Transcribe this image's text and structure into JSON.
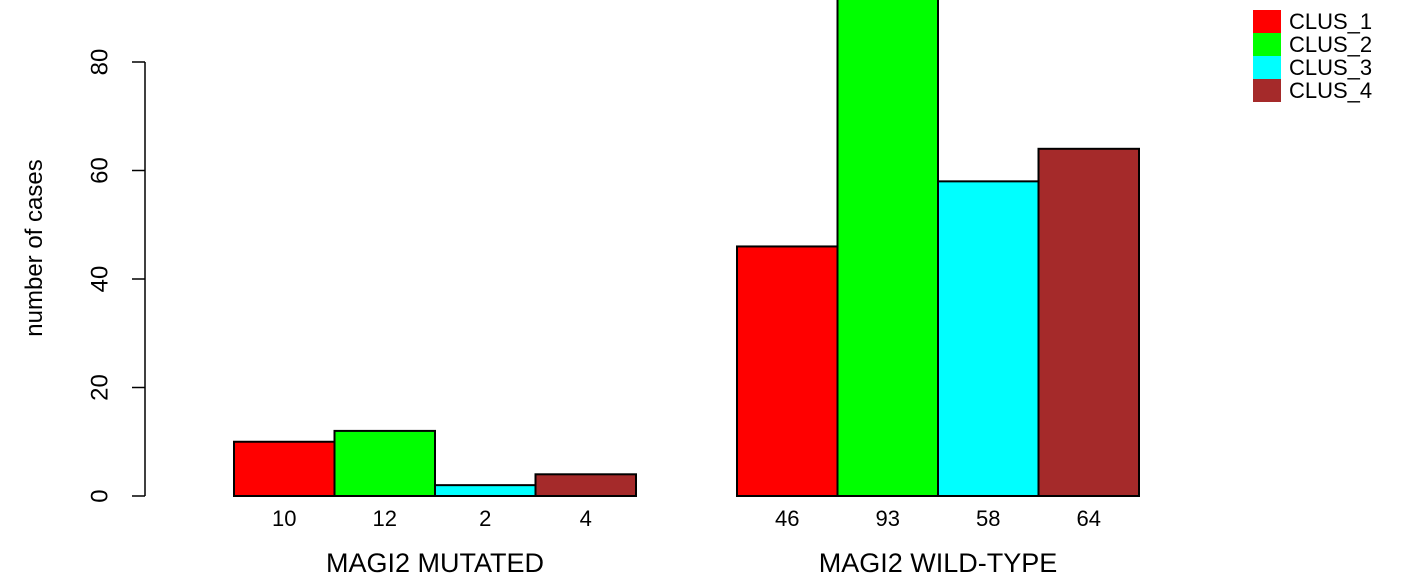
{
  "chart_data": {
    "type": "bar",
    "ylabel": "number of cases",
    "ylim": [
      0,
      93
    ],
    "yticks": [
      0,
      20,
      40,
      60,
      80
    ],
    "groups": [
      {
        "label": "MAGI2 MUTATED",
        "values": [
          10,
          12,
          2,
          4
        ]
      },
      {
        "label": "MAGI2 WILD-TYPE",
        "values": [
          46,
          93,
          58,
          64
        ]
      }
    ],
    "series": [
      {
        "name": "CLUS_1",
        "color": "#ff0000"
      },
      {
        "name": "CLUS_2",
        "color": "#00ff00"
      },
      {
        "name": "CLUS_3",
        "color": "#00ffff"
      },
      {
        "name": "CLUS_4",
        "color": "#a52a2a"
      }
    ],
    "legend_position": "top-right",
    "grid": false
  }
}
